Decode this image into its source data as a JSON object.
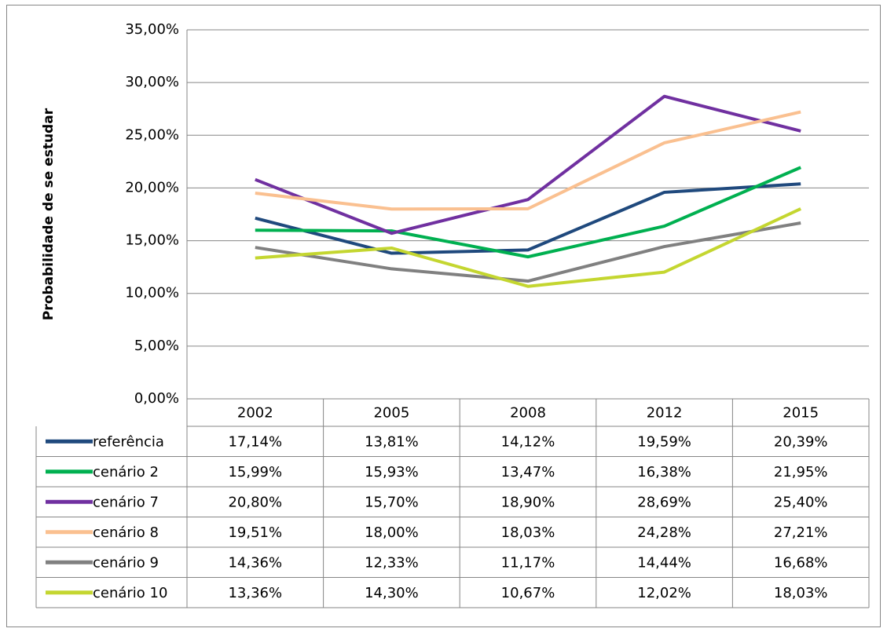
{
  "chart_data": {
    "type": "line",
    "y_label": "Probabilidade de se estudar",
    "categories": [
      "2002",
      "2005",
      "2008",
      "2012",
      "2015"
    ],
    "ylim": [
      0,
      35
    ],
    "yticks": [
      {
        "value": 0,
        "label": "0,00%"
      },
      {
        "value": 5,
        "label": "5,00%"
      },
      {
        "value": 10,
        "label": "10,00%"
      },
      {
        "value": 15,
        "label": "15,00%"
      },
      {
        "value": 20,
        "label": "20,00%"
      },
      {
        "value": 25,
        "label": "25,00%"
      },
      {
        "value": 30,
        "label": "30,00%"
      },
      {
        "value": 35,
        "label": "35,00%"
      }
    ],
    "grid": true,
    "series": [
      {
        "name": "referência",
        "color": "#1f497d",
        "values": [
          17.14,
          13.81,
          14.12,
          19.59,
          20.39
        ],
        "value_labels": [
          "17,14%",
          "13,81%",
          "14,12%",
          "19,59%",
          "20,39%"
        ]
      },
      {
        "name": "cenário 2",
        "color": "#00b050",
        "values": [
          15.99,
          15.93,
          13.47,
          16.38,
          21.95
        ],
        "value_labels": [
          "15,99%",
          "15,93%",
          "13,47%",
          "16,38%",
          "21,95%"
        ]
      },
      {
        "name": "cenário 7",
        "color": "#7030a0",
        "values": [
          20.8,
          15.7,
          18.9,
          28.69,
          25.4
        ],
        "value_labels": [
          "20,80%",
          "15,70%",
          "18,90%",
          "28,69%",
          "25,40%"
        ]
      },
      {
        "name": "cenário 8",
        "color": "#fac090",
        "values": [
          19.51,
          18.0,
          18.03,
          24.28,
          27.21
        ],
        "value_labels": [
          "19,51%",
          "18,00%",
          "18,03%",
          "24,28%",
          "27,21%"
        ]
      },
      {
        "name": "cenário 9",
        "color": "#808080",
        "values": [
          14.36,
          12.33,
          11.17,
          14.44,
          16.68
        ],
        "value_labels": [
          "14,36%",
          "12,33%",
          "11,17%",
          "14,44%",
          "16,68%"
        ]
      },
      {
        "name": "cenário 10",
        "color": "#c4d630",
        "values": [
          13.36,
          14.3,
          10.67,
          12.02,
          18.03
        ],
        "value_labels": [
          "13,36%",
          "14,30%",
          "10,67%",
          "12,02%",
          "18,03%"
        ]
      }
    ]
  }
}
